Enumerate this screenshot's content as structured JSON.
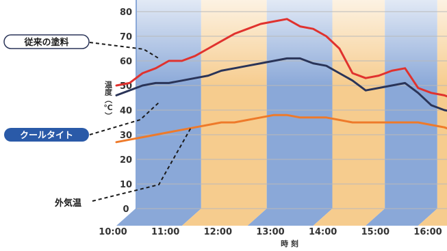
{
  "chart_data": {
    "type": "line",
    "title": "",
    "xlabel": "時 刻",
    "ylabel": "温度（℃）",
    "ylim": [
      0,
      80
    ],
    "yticks": [
      "0",
      "10",
      "20",
      "30",
      "40",
      "50",
      "60",
      "70",
      "80"
    ],
    "x_ticks": [
      "10:00",
      "11:00",
      "12:00",
      "13:00",
      "14:00",
      "15:00",
      "16:00"
    ],
    "grid": true,
    "colors": {
      "conventional": "#e0322e",
      "cooltight": "#2a3458",
      "outside": "#ee7a2a",
      "band_blue": "#8aa8d8",
      "band_orange": "#f6cc8e",
      "label_blue": "#2a5aa8"
    },
    "series": [
      {
        "name": "従来の塗料",
        "key": "conventional",
        "x": [
          "10:00",
          "10:15",
          "10:30",
          "10:45",
          "11:00",
          "11:15",
          "11:30",
          "11:45",
          "12:00",
          "12:15",
          "12:30",
          "12:45",
          "13:00",
          "13:15",
          "13:30",
          "13:45",
          "14:00",
          "14:15",
          "14:30",
          "14:45",
          "15:00",
          "15:15",
          "15:30",
          "15:45",
          "16:00",
          "16:15",
          "16:30"
        ],
        "values": [
          50,
          51,
          55,
          57,
          60,
          60,
          62,
          65,
          68,
          71,
          73,
          75,
          76,
          77,
          74,
          73,
          70,
          65,
          55,
          53,
          54,
          56,
          57,
          49,
          47,
          46,
          44
        ]
      },
      {
        "name": "クールタイト",
        "key": "cooltight",
        "x": [
          "10:00",
          "10:15",
          "10:30",
          "10:45",
          "11:00",
          "11:15",
          "11:30",
          "11:45",
          "12:00",
          "12:15",
          "12:30",
          "12:45",
          "13:00",
          "13:15",
          "13:30",
          "13:45",
          "14:00",
          "14:15",
          "14:30",
          "14:45",
          "15:00",
          "15:15",
          "15:30",
          "15:45",
          "16:00",
          "16:15",
          "16:30"
        ],
        "values": [
          46,
          48,
          50,
          51,
          51,
          52,
          53,
          54,
          56,
          57,
          58,
          59,
          60,
          61,
          61,
          59,
          58,
          55,
          52,
          48,
          49,
          50,
          51,
          47,
          42,
          40,
          39
        ]
      },
      {
        "name": "外気温",
        "key": "outside",
        "x": [
          "10:00",
          "10:15",
          "10:30",
          "10:45",
          "11:00",
          "11:15",
          "11:30",
          "11:45",
          "12:00",
          "12:15",
          "12:30",
          "12:45",
          "13:00",
          "13:15",
          "13:30",
          "13:45",
          "14:00",
          "14:15",
          "14:30",
          "14:45",
          "15:00",
          "15:15",
          "15:30",
          "15:45",
          "16:00",
          "16:15",
          "16:30"
        ],
        "values": [
          27,
          28,
          29,
          30,
          31,
          32,
          33,
          34,
          35,
          35,
          36,
          37,
          38,
          38,
          37,
          37,
          37,
          36,
          35,
          35,
          35,
          35,
          35,
          35,
          34,
          33,
          31
        ]
      }
    ],
    "bands": [
      {
        "from": "10:00",
        "to": "11:15",
        "color_key": "band_blue"
      },
      {
        "from": "11:15",
        "to": "12:30",
        "color_key": "band_orange"
      },
      {
        "from": "12:30",
        "to": "13:45",
        "color_key": "band_blue"
      },
      {
        "from": "13:45",
        "to": "14:45",
        "color_key": "band_orange"
      },
      {
        "from": "14:45",
        "to": "15:45",
        "color_key": "band_blue"
      },
      {
        "from": "15:45",
        "to": "16:30",
        "color_key": "band_orange"
      }
    ]
  },
  "labels": {
    "conventional": "従来の塗料",
    "cooltight": "クールタイト",
    "outside": "外気温"
  }
}
